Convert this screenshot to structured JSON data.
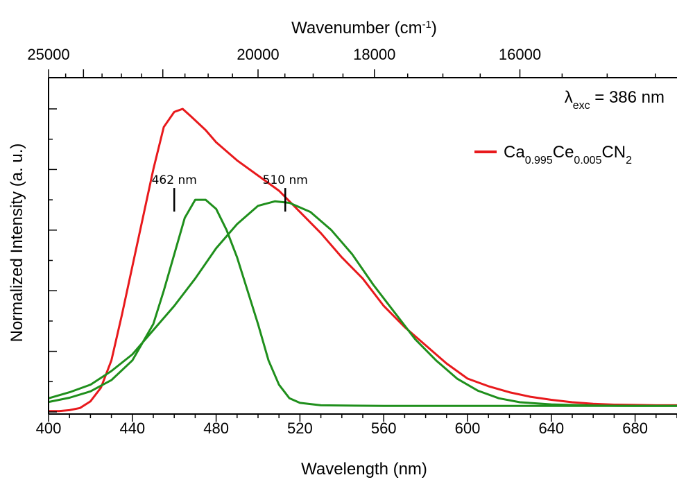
{
  "chart_data": {
    "type": "line",
    "xlabel": "Wavelength (nm)",
    "ylabel": "Normalized Intensity (a. u.)",
    "top_axis": {
      "label_main": "Wavenumber (cm",
      "label_sup": "-1",
      "label_close": ")",
      "ticks": [
        25000,
        20000,
        18000,
        16000
      ],
      "tick_labels": [
        "25000",
        "20000",
        "18000",
        "16000"
      ]
    },
    "x_range": [
      400,
      700
    ],
    "y_range": [
      0,
      1.1
    ],
    "x_ticks": [
      400,
      440,
      480,
      520,
      560,
      600,
      640,
      680
    ],
    "x_tick_labels": [
      "400",
      "440",
      "480",
      "520",
      "560",
      "600",
      "640",
      "680"
    ],
    "y_major_ticks": [
      0,
      0.2,
      0.4,
      0.6,
      0.8,
      1.0
    ],
    "y_tick_labels_shown": false,
    "grid": false,
    "legend": {
      "placement": "top-right",
      "name_parts": [
        {
          "text": "Ca",
          "sub": false
        },
        {
          "text": "0.995",
          "sub": true
        },
        {
          "text": "Ce",
          "sub": false
        },
        {
          "text": "0.005",
          "sub": true
        },
        {
          "text": "CN",
          "sub": false
        },
        {
          "text": "2",
          "sub": true
        }
      ]
    },
    "excitation": {
      "prefix": "λ",
      "sub": "exc",
      "suffix": " = 386 nm"
    },
    "series": [
      {
        "color": "#e8191c",
        "points": [
          [
            400,
            0.003
          ],
          [
            405,
            0.003
          ],
          [
            410,
            0.006
          ],
          [
            415,
            0.013
          ],
          [
            420,
            0.035
          ],
          [
            425,
            0.08
          ],
          [
            430,
            0.17
          ],
          [
            435,
            0.32
          ],
          [
            440,
            0.48
          ],
          [
            445,
            0.64
          ],
          [
            450,
            0.8
          ],
          [
            455,
            0.94
          ],
          [
            460,
            0.99
          ],
          [
            464,
            1.0
          ],
          [
            468,
            0.975
          ],
          [
            475,
            0.93
          ],
          [
            480,
            0.89
          ],
          [
            490,
            0.83
          ],
          [
            500,
            0.78
          ],
          [
            510,
            0.73
          ],
          [
            520,
            0.66
          ],
          [
            530,
            0.59
          ],
          [
            540,
            0.51
          ],
          [
            550,
            0.44
          ],
          [
            560,
            0.35
          ],
          [
            570,
            0.28
          ],
          [
            580,
            0.22
          ],
          [
            590,
            0.16
          ],
          [
            600,
            0.11
          ],
          [
            610,
            0.085
          ],
          [
            620,
            0.065
          ],
          [
            630,
            0.05
          ],
          [
            640,
            0.04
          ],
          [
            650,
            0.032
          ],
          [
            660,
            0.027
          ],
          [
            670,
            0.024
          ],
          [
            680,
            0.023
          ],
          [
            690,
            0.022
          ],
          [
            700,
            0.022
          ]
        ]
      },
      {
        "color": "#1f8f1c",
        "points": [
          [
            400,
            0.033
          ],
          [
            410,
            0.047
          ],
          [
            420,
            0.068
          ],
          [
            430,
            0.105
          ],
          [
            440,
            0.17
          ],
          [
            450,
            0.29
          ],
          [
            455,
            0.4
          ],
          [
            460,
            0.52
          ],
          [
            465,
            0.64
          ],
          [
            470,
            0.7
          ],
          [
            475,
            0.7
          ],
          [
            480,
            0.67
          ],
          [
            485,
            0.6
          ],
          [
            490,
            0.51
          ],
          [
            495,
            0.4
          ],
          [
            500,
            0.29
          ],
          [
            505,
            0.17
          ],
          [
            510,
            0.09
          ],
          [
            515,
            0.045
          ],
          [
            520,
            0.03
          ],
          [
            530,
            0.022
          ],
          [
            560,
            0.02
          ],
          [
            600,
            0.02
          ],
          [
            640,
            0.02
          ],
          [
            680,
            0.02
          ],
          [
            700,
            0.02
          ]
        ]
      },
      {
        "color": "#1f8f1c",
        "points": [
          [
            400,
            0.045
          ],
          [
            410,
            0.065
          ],
          [
            420,
            0.09
          ],
          [
            430,
            0.135
          ],
          [
            440,
            0.19
          ],
          [
            450,
            0.27
          ],
          [
            460,
            0.35
          ],
          [
            470,
            0.44
          ],
          [
            480,
            0.54
          ],
          [
            490,
            0.62
          ],
          [
            500,
            0.68
          ],
          [
            508,
            0.695
          ],
          [
            515,
            0.69
          ],
          [
            525,
            0.66
          ],
          [
            535,
            0.6
          ],
          [
            545,
            0.52
          ],
          [
            555,
            0.42
          ],
          [
            565,
            0.33
          ],
          [
            575,
            0.24
          ],
          [
            585,
            0.17
          ],
          [
            595,
            0.11
          ],
          [
            605,
            0.07
          ],
          [
            615,
            0.045
          ],
          [
            625,
            0.032
          ],
          [
            640,
            0.025
          ],
          [
            660,
            0.021
          ],
          [
            680,
            0.02
          ],
          [
            700,
            0.02
          ]
        ]
      }
    ],
    "annotations": [
      {
        "text": "462 nm",
        "x": 460,
        "y": 0.7
      },
      {
        "text": "510 nm",
        "x": 513,
        "y": 0.7
      }
    ]
  }
}
